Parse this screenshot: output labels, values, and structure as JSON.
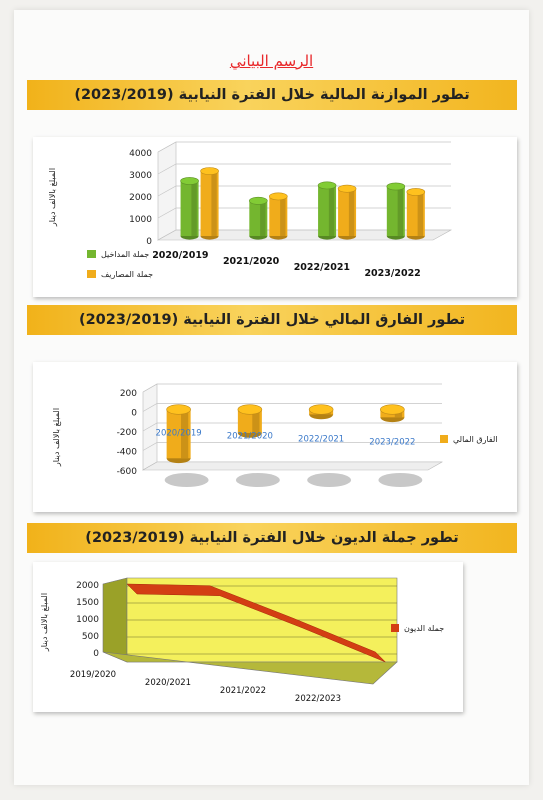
{
  "page": {
    "title": "الرسم البياني"
  },
  "chart_data": [
    {
      "type": "bar",
      "title": "تطور الموازنة المالية خلال الفترة النيابية (2023/2019)",
      "ylabel": "المبلغ بالالف دينار",
      "categories": [
        "2020/2019",
        "2021/2020",
        "2022/2021",
        "2023/2022"
      ],
      "ylim": [
        0,
        4000
      ],
      "yticks": [
        0,
        1000,
        2000,
        3000,
        4000
      ],
      "grid": true,
      "legend": "right",
      "series": [
        {
          "name": "جملة المداخيل",
          "color": "#74b62f",
          "values": [
            2500,
            1600,
            2300,
            2250
          ]
        },
        {
          "name": "جملة المصاريف",
          "color": "#f0ac1b",
          "values": [
            2950,
            1800,
            2150,
            2000
          ]
        }
      ]
    },
    {
      "type": "bar",
      "title": "تطور الفارق المالي خلال الفترة النيابية (2023/2019)",
      "ylabel": "المبلغ بالالف دينار",
      "categories": [
        "2020/2019",
        "2021/2020",
        "2022/2021",
        "2023/2022"
      ],
      "ylim": [
        -600,
        200
      ],
      "yticks": [
        -600,
        -400,
        -200,
        0,
        200
      ],
      "grid": true,
      "legend": "right",
      "series": [
        {
          "name": "الفارق المالي",
          "color": "#f0ac1b",
          "values": [
            -480,
            -220,
            -30,
            -60
          ]
        }
      ]
    },
    {
      "type": "area",
      "title": "تطور جملة الديون خلال الفترة النيابية (2023/2019)",
      "ylabel": "المبلغ بالالف دينار",
      "categories": [
        "2019/2020",
        "2020/2021",
        "2021/2022",
        "2022/2023"
      ],
      "ylim": [
        0,
        2000
      ],
      "yticks": [
        0,
        500,
        1000,
        1500,
        2000
      ],
      "grid": true,
      "legend": "right",
      "series": [
        {
          "name": "جملة الديون",
          "color": "#d33e14",
          "values": [
            2000,
            1950,
            1000,
            0
          ]
        }
      ]
    }
  ]
}
